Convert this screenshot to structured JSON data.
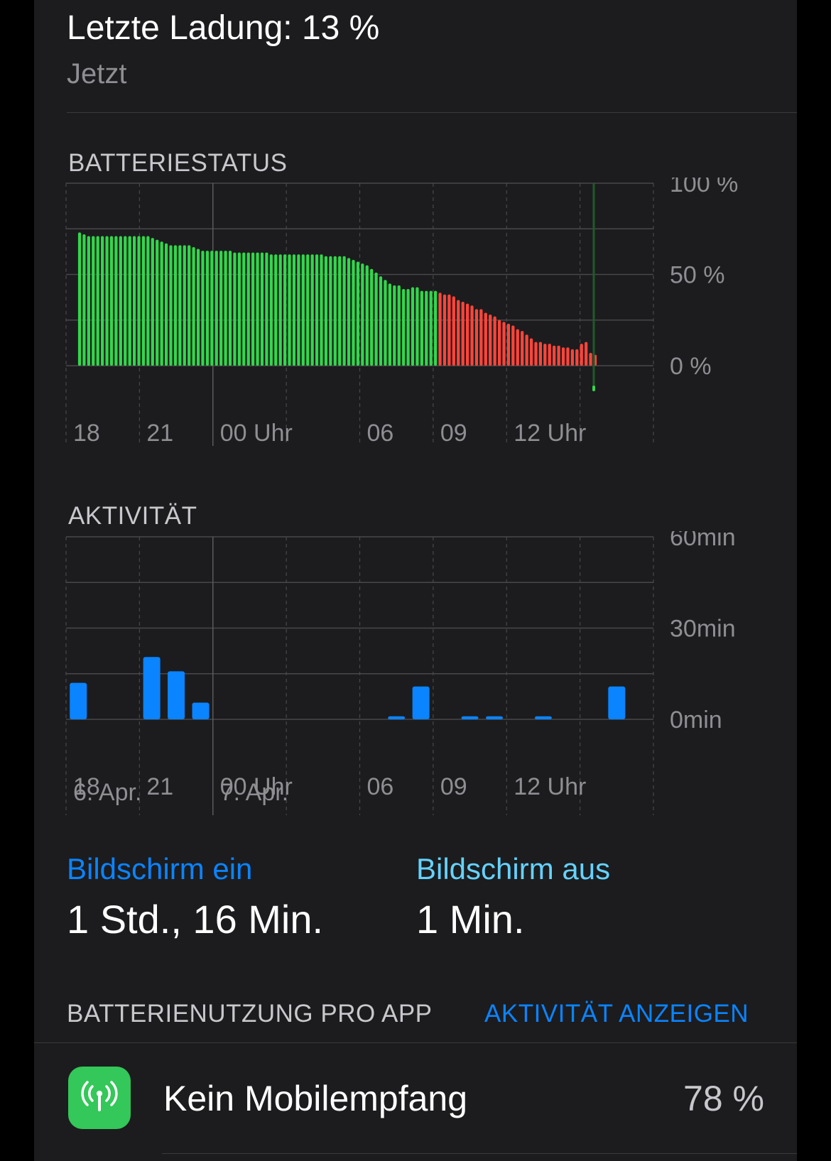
{
  "header": {
    "last_charge": "Letzte Ladung: 13 %",
    "time": "Jetzt"
  },
  "battery_section": {
    "label": "BATTERIESTATUS"
  },
  "activity_section": {
    "label": "AKTIVITÄT"
  },
  "colors": {
    "battery_green": "#32d74b",
    "battery_red": "#ff453a",
    "activity_blue": "#0a84ff",
    "link_blue": "#0a84ff",
    "teal": "#64d2ff"
  },
  "chart_data": [
    {
      "type": "bar",
      "title": "BATTERIESTATUS",
      "x_tick_labels": [
        "18",
        "21",
        "00 Uhr",
        "06",
        "09",
        "12 Uhr"
      ],
      "y_tick_labels": [
        "100 %",
        "50 %",
        "0 %"
      ],
      "ylim": [
        0,
        100
      ],
      "grid": true,
      "series": [
        {
          "color": "#32d74b",
          "values": [
            73,
            72,
            71,
            71,
            71,
            71,
            71,
            71,
            71,
            71,
            71,
            71,
            71,
            71,
            71,
            71,
            70,
            69,
            68,
            67,
            66,
            66,
            66,
            66,
            66,
            65,
            64,
            63,
            63,
            63,
            63,
            63,
            63,
            63,
            62,
            62,
            62,
            62,
            62,
            62,
            62,
            62,
            61,
            61,
            61,
            61,
            61,
            61,
            61,
            61,
            61,
            61,
            61,
            61,
            60,
            60,
            60,
            60,
            60,
            59,
            58,
            57,
            56,
            55,
            53,
            51,
            49,
            47,
            45,
            44,
            44,
            42,
            42,
            43,
            43,
            41,
            41,
            41,
            41,
            40,
            39,
            39,
            38,
            36,
            35,
            34,
            33,
            31,
            31,
            29,
            28,
            27,
            25,
            24,
            23,
            22,
            20,
            19,
            17,
            15,
            13,
            13,
            12,
            12,
            11,
            11,
            10,
            10,
            9,
            9,
            12,
            13,
            7,
            6
          ]
        }
      ],
      "red_from_index": 79,
      "marker_line_index": 113
    },
    {
      "type": "bar",
      "title": "AKTIVITÄT",
      "x_tick_labels": [
        "18",
        "21",
        "00 Uhr",
        "06",
        "09",
        "12 Uhr"
      ],
      "date_labels": [
        "6. Apr.",
        "7. Apr."
      ],
      "y_tick_labels": [
        "60min",
        "30min",
        "0min"
      ],
      "ylim": [
        0,
        60
      ],
      "grid": true,
      "series": [
        {
          "color": "#0a84ff",
          "values": [
            12,
            0,
            0,
            20.5,
            15.8,
            5.5,
            0,
            0,
            0,
            0,
            0,
            0,
            0,
            1,
            10.8,
            0,
            1,
            1,
            0,
            1,
            0,
            0,
            10.8,
            0
          ]
        }
      ]
    }
  ],
  "screen_on": {
    "label": "Bildschirm ein",
    "value": "1 Std., 16 Min."
  },
  "screen_off": {
    "label": "Bildschirm aus",
    "value": "1 Min."
  },
  "usage": {
    "header": "BATTERIENUTZUNG PRO APP",
    "show_activity": "AKTIVITÄT ANZEIGEN",
    "apps": [
      {
        "name": "Kein Mobilempfang",
        "percent": "78 %",
        "icon": "antenna-icon"
      }
    ]
  }
}
